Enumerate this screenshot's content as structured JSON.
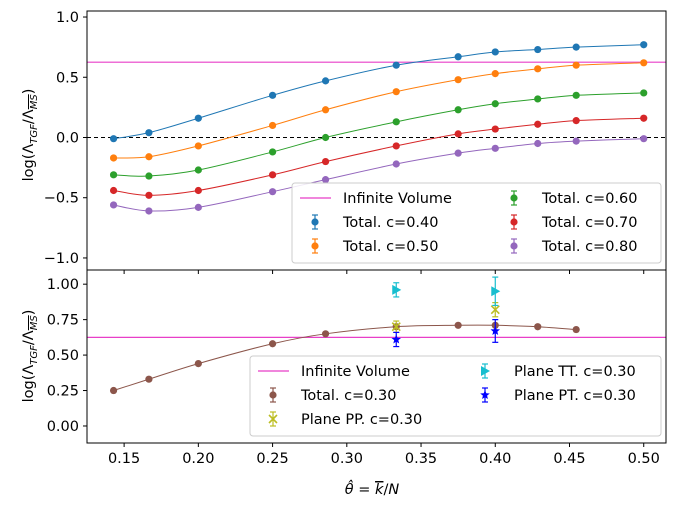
{
  "chart_data": [
    {
      "type": "line",
      "panel": "top",
      "ylabel": "log(Λ_TGF/Λ_MS)",
      "xlim": [
        0.125,
        0.515
      ],
      "ylim": [
        -1.1,
        1.05
      ],
      "yticks": [
        -1.0,
        -0.5,
        0.0,
        0.5,
        1.0
      ],
      "ytick_labels": [
        "−1.0",
        "−0.5",
        "0.0",
        "0.5",
        "1.0"
      ],
      "hline_solid": {
        "name": "Infinite Volume",
        "y": 0.625,
        "color": "#e83fc8"
      },
      "hline_dashed": {
        "y": 0.0,
        "color": "#000000"
      },
      "legend_position": "bottom-right",
      "legend_label_lines": [
        "Infinite Volume",
        "Total. c=0.40",
        "Total. c=0.50",
        "Total. c=0.60",
        "Total. c=0.70",
        "Total. c=0.80"
      ],
      "series": [
        {
          "name": "Total. c=0.40",
          "color": "#1f77b4",
          "x": [
            0.1429,
            0.1667,
            0.2,
            0.25,
            0.2857,
            0.3333,
            0.375,
            0.4,
            0.4286,
            0.4545,
            0.5
          ],
          "y": [
            -0.01,
            0.04,
            0.16,
            0.35,
            0.47,
            0.6,
            0.67,
            0.71,
            0.73,
            0.75,
            0.77
          ]
        },
        {
          "name": "Total. c=0.50",
          "color": "#ff7f0e",
          "x": [
            0.1429,
            0.1667,
            0.2,
            0.25,
            0.2857,
            0.3333,
            0.375,
            0.4,
            0.4286,
            0.4545,
            0.5
          ],
          "y": [
            -0.17,
            -0.16,
            -0.07,
            0.1,
            0.23,
            0.38,
            0.48,
            0.53,
            0.57,
            0.6,
            0.62
          ]
        },
        {
          "name": "Total. c=0.60",
          "color": "#2ca02c",
          "x": [
            0.1429,
            0.1667,
            0.2,
            0.25,
            0.2857,
            0.3333,
            0.375,
            0.4,
            0.4286,
            0.4545,
            0.5
          ],
          "y": [
            -0.31,
            -0.32,
            -0.27,
            -0.12,
            0.0,
            0.13,
            0.23,
            0.28,
            0.32,
            0.35,
            0.37
          ]
        },
        {
          "name": "Total. c=0.70",
          "color": "#d62728",
          "x": [
            0.1429,
            0.1667,
            0.2,
            0.25,
            0.2857,
            0.3333,
            0.375,
            0.4,
            0.4286,
            0.4545,
            0.5
          ],
          "y": [
            -0.44,
            -0.48,
            -0.44,
            -0.31,
            -0.2,
            -0.07,
            0.03,
            0.07,
            0.11,
            0.14,
            0.16
          ]
        },
        {
          "name": "Total. c=0.80",
          "color": "#9467bd",
          "x": [
            0.1429,
            0.1667,
            0.2,
            0.25,
            0.2857,
            0.3333,
            0.375,
            0.4,
            0.4286,
            0.4545,
            0.5
          ],
          "y": [
            -0.56,
            -0.61,
            -0.58,
            -0.45,
            -0.35,
            -0.22,
            -0.13,
            -0.09,
            -0.05,
            -0.03,
            -0.01
          ]
        }
      ]
    },
    {
      "type": "scatter",
      "panel": "bottom",
      "xlabel": "θ̂ = k̄/N",
      "ylabel": "log(Λ_TGF/Λ_MS)",
      "xlim": [
        0.125,
        0.515
      ],
      "ylim": [
        -0.12,
        1.1
      ],
      "xticks": [
        0.15,
        0.2,
        0.25,
        0.3,
        0.35,
        0.4,
        0.45,
        0.5
      ],
      "xtick_labels": [
        "0.15",
        "0.20",
        "0.25",
        "0.30",
        "0.35",
        "0.40",
        "0.45",
        "0.50"
      ],
      "yticks": [
        0.0,
        0.25,
        0.5,
        0.75,
        1.0
      ],
      "ytick_labels": [
        "0.00",
        "0.25",
        "0.50",
        "0.75",
        "1.00"
      ],
      "hline_solid": {
        "name": "Infinite Volume",
        "y": 0.625,
        "color": "#e83fc8"
      },
      "legend_position": "bottom-right",
      "legend_label_lines": [
        "Infinite Volume",
        "Total. c=0.30",
        "Plane PP. c=0.30",
        "Plane TT. c=0.30",
        "Plane PT. c=0.30"
      ],
      "series": [
        {
          "name": "Total. c=0.30",
          "color": "#8c564b",
          "marker": "circle",
          "curve": true,
          "x": [
            0.1429,
            0.1667,
            0.2,
            0.25,
            0.2857,
            0.3333,
            0.375,
            0.4,
            0.4286,
            0.4545
          ],
          "y": [
            0.25,
            0.33,
            0.44,
            0.58,
            0.65,
            0.7,
            0.71,
            0.71,
            0.7,
            0.68
          ],
          "yerr": [
            0,
            0,
            0,
            0,
            0,
            0,
            0,
            0,
            0,
            0
          ]
        },
        {
          "name": "Plane PP. c=0.30",
          "color": "#bcbd22",
          "marker": "x",
          "x": [
            0.3333,
            0.4
          ],
          "y": [
            0.7,
            0.82
          ],
          "yerr": [
            0.04,
            0.05
          ]
        },
        {
          "name": "Plane TT. c=0.30",
          "color": "#17becf",
          "marker": "triangle-right",
          "x": [
            0.3333,
            0.4
          ],
          "y": [
            0.96,
            0.95
          ],
          "yerr": [
            0.05,
            0.1
          ]
        },
        {
          "name": "Plane PT. c=0.30",
          "color": "#0000ff",
          "marker": "star",
          "x": [
            0.3333,
            0.4
          ],
          "y": [
            0.61,
            0.67
          ],
          "yerr": [
            0.05,
            0.08
          ]
        }
      ]
    }
  ]
}
